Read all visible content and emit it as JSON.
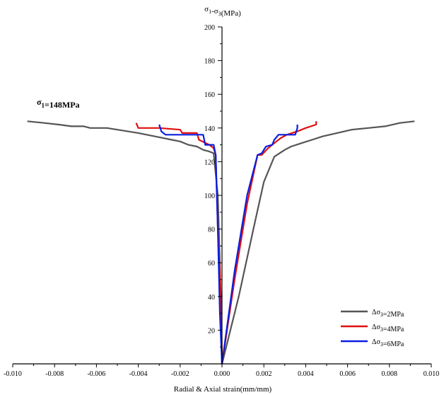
{
  "chart_data": {
    "type": "line",
    "ylabel": "σ1-σ3(MPa)",
    "xlabel": "Radial & Axial strain(mm/mm)",
    "xlim": [
      -0.01,
      0.01
    ],
    "ylim": [
      0,
      200
    ],
    "x_ticks": [
      "-0.010",
      "-0.008",
      "-0.006",
      "-0.004",
      "-0.002",
      "0.000",
      "0.002",
      "0.004",
      "0.006",
      "0.008",
      "0.010"
    ],
    "y_ticks": [
      "20",
      "40",
      "60",
      "80",
      "100",
      "120",
      "140",
      "160",
      "180",
      "200"
    ],
    "annotation": "σ1=148MPa",
    "legend_position": "bottom-right",
    "grid": false,
    "series": [
      {
        "name": "Δσ3=2MPa",
        "color": "#555555",
        "points": [
          [
            -0.0093,
            144
          ],
          [
            -0.0085,
            143
          ],
          [
            -0.0078,
            142
          ],
          [
            -0.0072,
            141
          ],
          [
            -0.0066,
            141
          ],
          [
            -0.0063,
            140
          ],
          [
            -0.0055,
            140
          ],
          [
            -0.005,
            139
          ],
          [
            -0.0045,
            138
          ],
          [
            -0.004,
            137
          ],
          [
            -0.0036,
            136
          ],
          [
            -0.0032,
            135
          ],
          [
            -0.0028,
            134
          ],
          [
            -0.0024,
            133
          ],
          [
            -0.002,
            132
          ],
          [
            -0.0016,
            130
          ],
          [
            -0.0012,
            129
          ],
          [
            -0.0009,
            127
          ],
          [
            -0.0006,
            126
          ],
          [
            -0.0004,
            125
          ],
          [
            -0.0002,
            100
          ],
          [
            -0.0001,
            60
          ],
          [
            0.0,
            0
          ],
          [
            0.0008,
            40
          ],
          [
            0.0015,
            80
          ],
          [
            0.002,
            108
          ],
          [
            0.0025,
            123
          ],
          [
            0.003,
            127
          ],
          [
            0.0033,
            129
          ],
          [
            0.0038,
            131
          ],
          [
            0.0043,
            133
          ],
          [
            0.0048,
            135
          ],
          [
            0.0055,
            137
          ],
          [
            0.0062,
            139
          ],
          [
            0.007,
            140
          ],
          [
            0.0078,
            141
          ],
          [
            0.0085,
            143
          ],
          [
            0.0092,
            144
          ]
        ]
      },
      {
        "name": "Δσ3=4MPa",
        "color": "#e01010",
        "points": [
          [
            -0.0041,
            143
          ],
          [
            -0.004,
            140
          ],
          [
            -0.0035,
            140
          ],
          [
            -0.003,
            140
          ],
          [
            -0.002,
            139
          ],
          [
            -0.0019,
            137
          ],
          [
            -0.0012,
            137
          ],
          [
            -0.0011,
            133
          ],
          [
            -0.0006,
            130
          ],
          [
            -0.0004,
            128
          ],
          [
            -0.0003,
            124
          ],
          [
            -0.0002,
            80
          ],
          [
            -5e-05,
            40
          ],
          [
            0.0,
            0
          ],
          [
            0.0006,
            50
          ],
          [
            0.0012,
            95
          ],
          [
            0.0017,
            124
          ],
          [
            0.0019,
            124
          ],
          [
            0.0022,
            128
          ],
          [
            0.0025,
            131
          ],
          [
            0.0028,
            134
          ],
          [
            0.0031,
            136
          ],
          [
            0.0036,
            138
          ],
          [
            0.004,
            140
          ],
          [
            0.0045,
            142
          ],
          [
            0.0045,
            144
          ]
        ]
      },
      {
        "name": "Δσ3=6MPa",
        "color": "#0a1ee0",
        "points": [
          [
            -0.003,
            142
          ],
          [
            -0.0029,
            138
          ],
          [
            -0.0027,
            136
          ],
          [
            -0.002,
            136
          ],
          [
            -0.0015,
            136
          ],
          [
            -0.0009,
            136
          ],
          [
            -0.0008,
            130
          ],
          [
            -0.0004,
            130
          ],
          [
            -0.0003,
            124
          ],
          [
            -0.0002,
            80
          ],
          [
            -0.0001,
            30
          ],
          [
            0.0,
            0
          ],
          [
            0.0006,
            55
          ],
          [
            0.0012,
            100
          ],
          [
            0.0017,
            124
          ],
          [
            0.0019,
            125
          ],
          [
            0.0021,
            129
          ],
          [
            0.0024,
            130
          ],
          [
            0.0025,
            133
          ],
          [
            0.0027,
            136
          ],
          [
            0.0031,
            136
          ],
          [
            0.0035,
            136
          ],
          [
            0.0036,
            140
          ],
          [
            0.0036,
            142
          ]
        ]
      }
    ]
  }
}
